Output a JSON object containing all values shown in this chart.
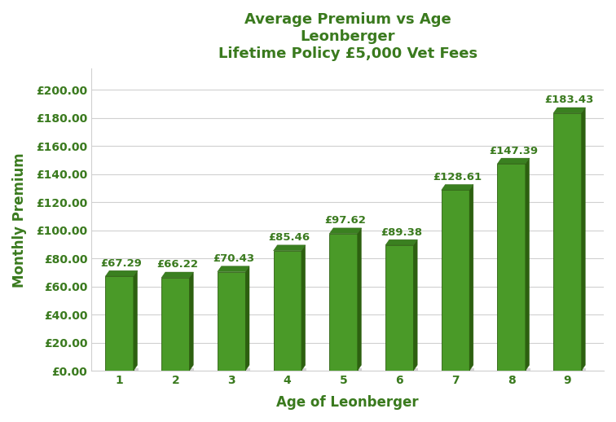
{
  "title_line1": "Average Premium vs Age",
  "title_line2": "Leonberger",
  "title_line3": "Lifetime Policy £5,000 Vet Fees",
  "xlabel": "Age of Leonberger",
  "ylabel": "Monthly Premium",
  "ages": [
    1,
    2,
    3,
    4,
    5,
    6,
    7,
    8,
    9
  ],
  "premiums": [
    67.29,
    66.22,
    70.43,
    85.46,
    97.62,
    89.38,
    128.61,
    147.39,
    183.43
  ],
  "bar_color_light": "#4a9a28",
  "bar_color_dark": "#2d6010",
  "bar_color_top": "#3a8020",
  "shadow_color": "#555555",
  "title_color": "#3a7a1e",
  "label_color": "#3a7a1e",
  "tick_color": "#3a7a1e",
  "grid_color": "#d0d0d0",
  "background_color": "#ffffff",
  "ylim": [
    0,
    215
  ],
  "yticks": [
    0,
    20,
    40,
    60,
    80,
    100,
    120,
    140,
    160,
    180,
    200
  ],
  "title_fontsize": 13,
  "axis_label_fontsize": 12,
  "tick_fontsize": 10,
  "bar_label_fontsize": 9.5,
  "bar_width": 0.5
}
